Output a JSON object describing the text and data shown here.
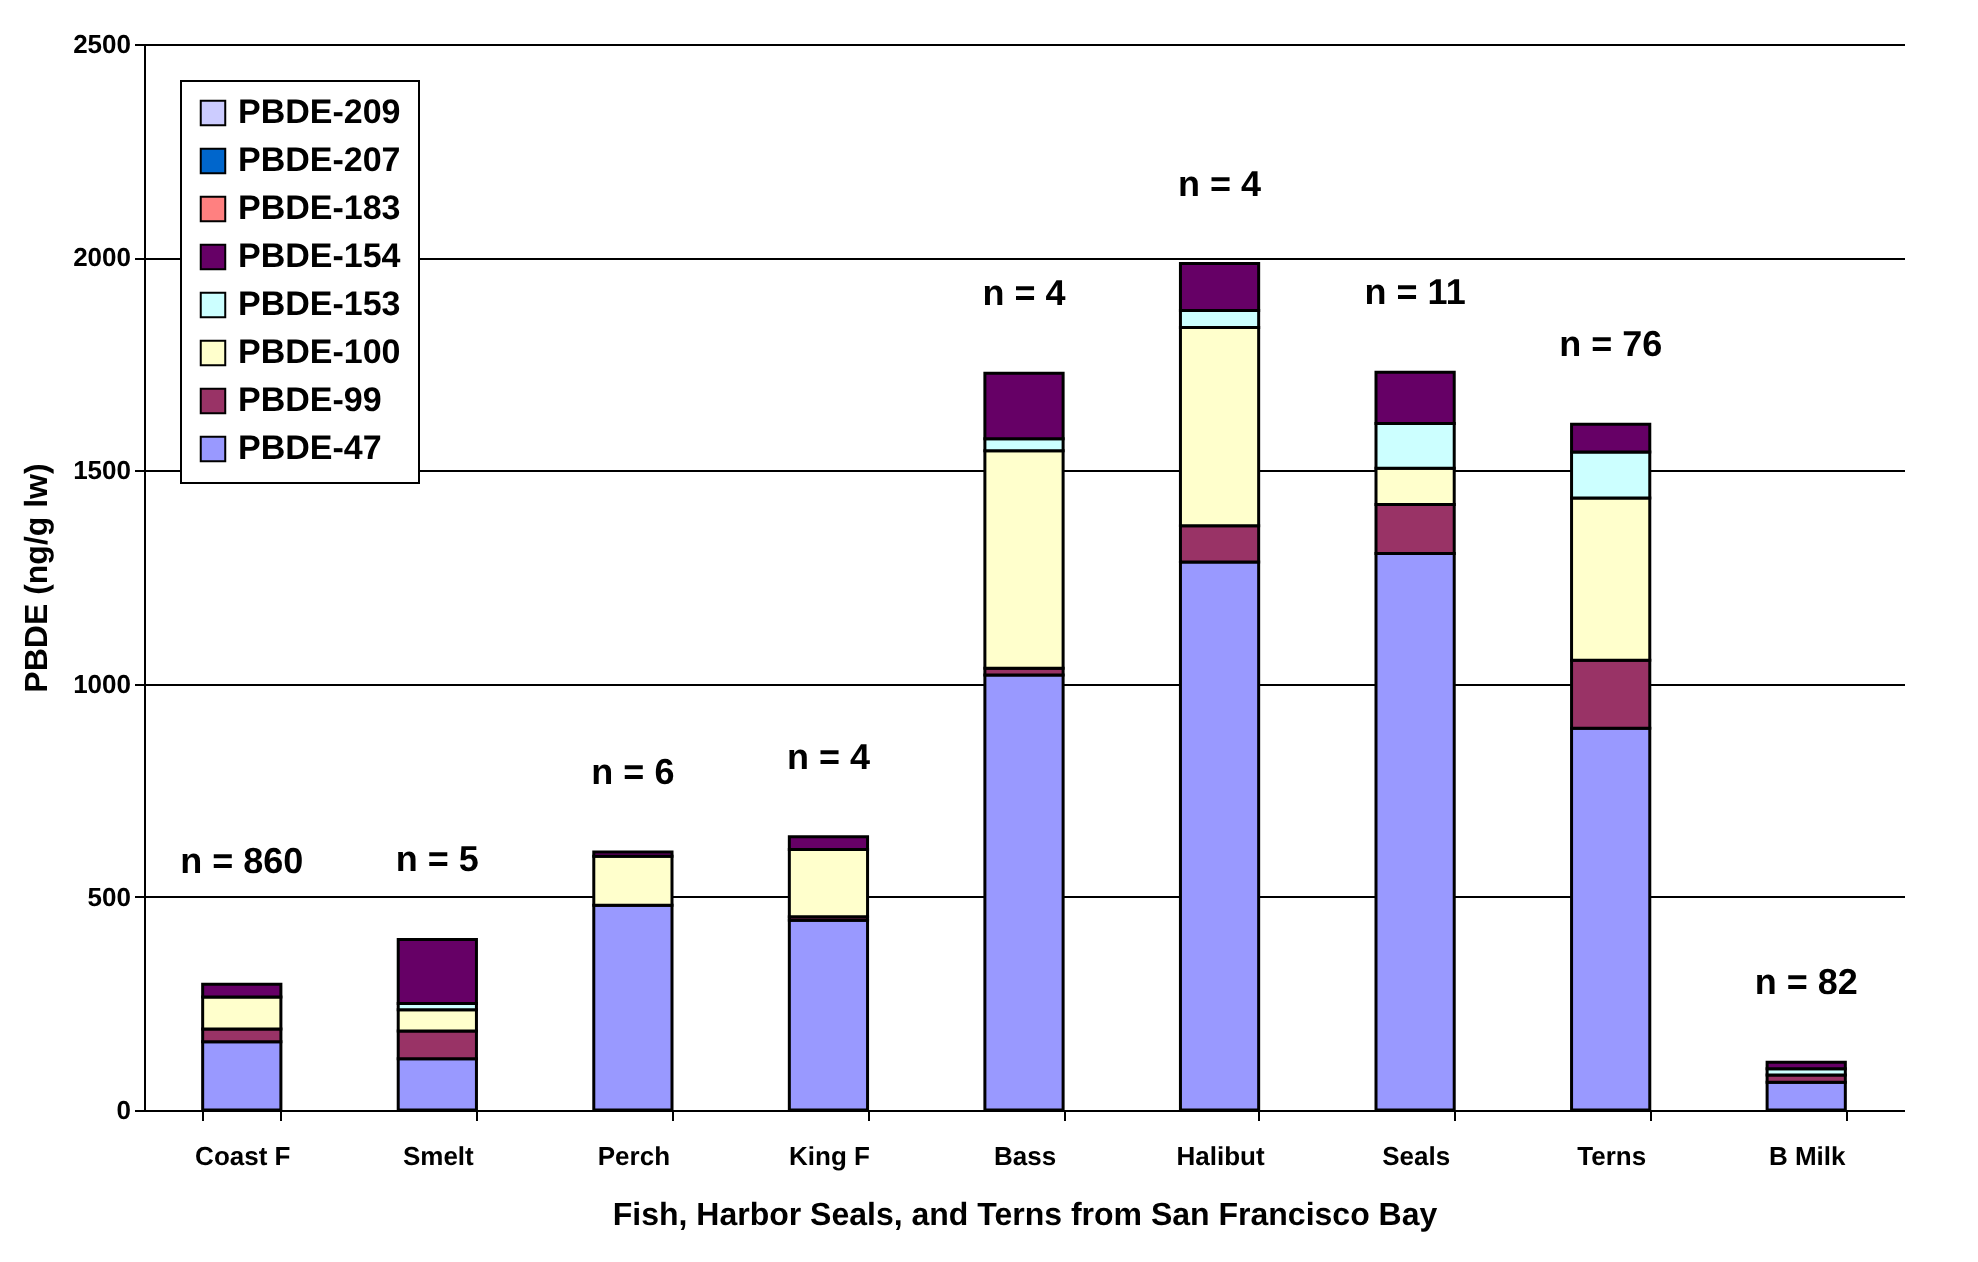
{
  "chart_data": {
    "type": "bar",
    "stacked": true,
    "xlabel": "Fish, Harbor Seals, and Terns from San Francisco Bay",
    "ylabel": "PBDE (ng/g lw)",
    "categories": [
      "Coast F",
      "Smelt",
      "Perch",
      "King F",
      "Bass",
      "Halibut",
      "Seals",
      "Terns",
      "B Milk"
    ],
    "ylim": [
      0,
      2500
    ],
    "yticks": [
      0,
      500,
      1000,
      1500,
      2000,
      2500
    ],
    "grid": "y",
    "legend": "top left",
    "series": [
      {
        "name": "PBDE-47",
        "color": "#9999ff",
        "values": [
          160,
          120,
          480,
          445,
          1020,
          1285,
          1305,
          895,
          65
        ]
      },
      {
        "name": "PBDE-99",
        "color": "#993366",
        "values": [
          30,
          65,
          null,
          8,
          16,
          85,
          115,
          160,
          17
        ]
      },
      {
        "name": "PBDE-100",
        "color": "#ffffcc",
        "values": [
          75,
          50,
          115,
          158,
          510,
          465,
          85,
          380,
          null
        ]
      },
      {
        "name": "PBDE-153",
        "color": "#ccffff",
        "values": [
          null,
          15,
          null,
          null,
          28,
          40,
          105,
          108,
          15
        ]
      },
      {
        "name": "PBDE-154",
        "color": "#660066",
        "values": [
          30,
          150,
          10,
          30,
          154,
          110,
          120,
          65,
          15
        ]
      },
      {
        "name": "PBDE-183",
        "color": "#ff8080",
        "values": [
          null,
          null,
          null,
          null,
          null,
          null,
          null,
          null,
          null
        ]
      },
      {
        "name": "PBDE-207",
        "color": "#0066cc",
        "values": [
          null,
          null,
          null,
          null,
          null,
          null,
          null,
          null,
          null
        ]
      },
      {
        "name": "PBDE-209",
        "color": "#ccccff",
        "values": [
          null,
          null,
          null,
          null,
          null,
          null,
          null,
          null,
          null
        ]
      }
    ],
    "annotations": [
      "n = 860",
      "n = 5",
      "n = 6",
      "n = 4",
      "n = 4",
      "n = 4",
      "n = 11",
      "n = 76",
      "n = 82"
    ]
  }
}
